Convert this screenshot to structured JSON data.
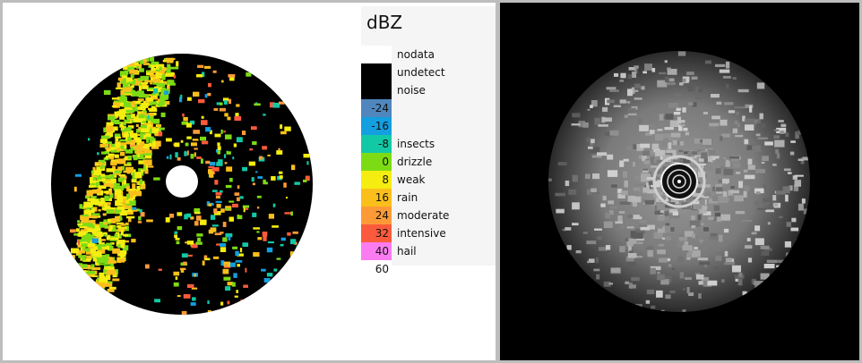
{
  "legend": {
    "title": "dBZ",
    "entries": [
      {
        "value": "",
        "label": "nodata",
        "color": "#ffffff"
      },
      {
        "value": "",
        "label": "undetect",
        "color": "#000000"
      },
      {
        "value": "",
        "label": "noise",
        "color": "#000000"
      },
      {
        "value": "-24",
        "label": "",
        "color": "#4f86bd"
      },
      {
        "value": "-16",
        "label": "",
        "color": "#139fe0"
      },
      {
        "value": "-8",
        "label": "insects",
        "color": "#12c9a6"
      },
      {
        "value": "0",
        "label": "drizzle",
        "color": "#7ddb14"
      },
      {
        "value": "8",
        "label": "weak",
        "color": "#f5ed10"
      },
      {
        "value": "16",
        "label": "rain",
        "color": "#fbbf1b"
      },
      {
        "value": "24",
        "label": "moderate",
        "color": "#fd9a38"
      },
      {
        "value": "32",
        "label": "intensive",
        "color": "#fb5b3c"
      },
      {
        "value": "40",
        "label": "hail",
        "color": "#fb7cf0"
      },
      {
        "value": "60",
        "label": "",
        "color": "#ffffff"
      }
    ]
  },
  "colors": {
    "background_frame": "#bdbdbd",
    "left_panel": "#ffffff",
    "right_panel": "#000000"
  }
}
